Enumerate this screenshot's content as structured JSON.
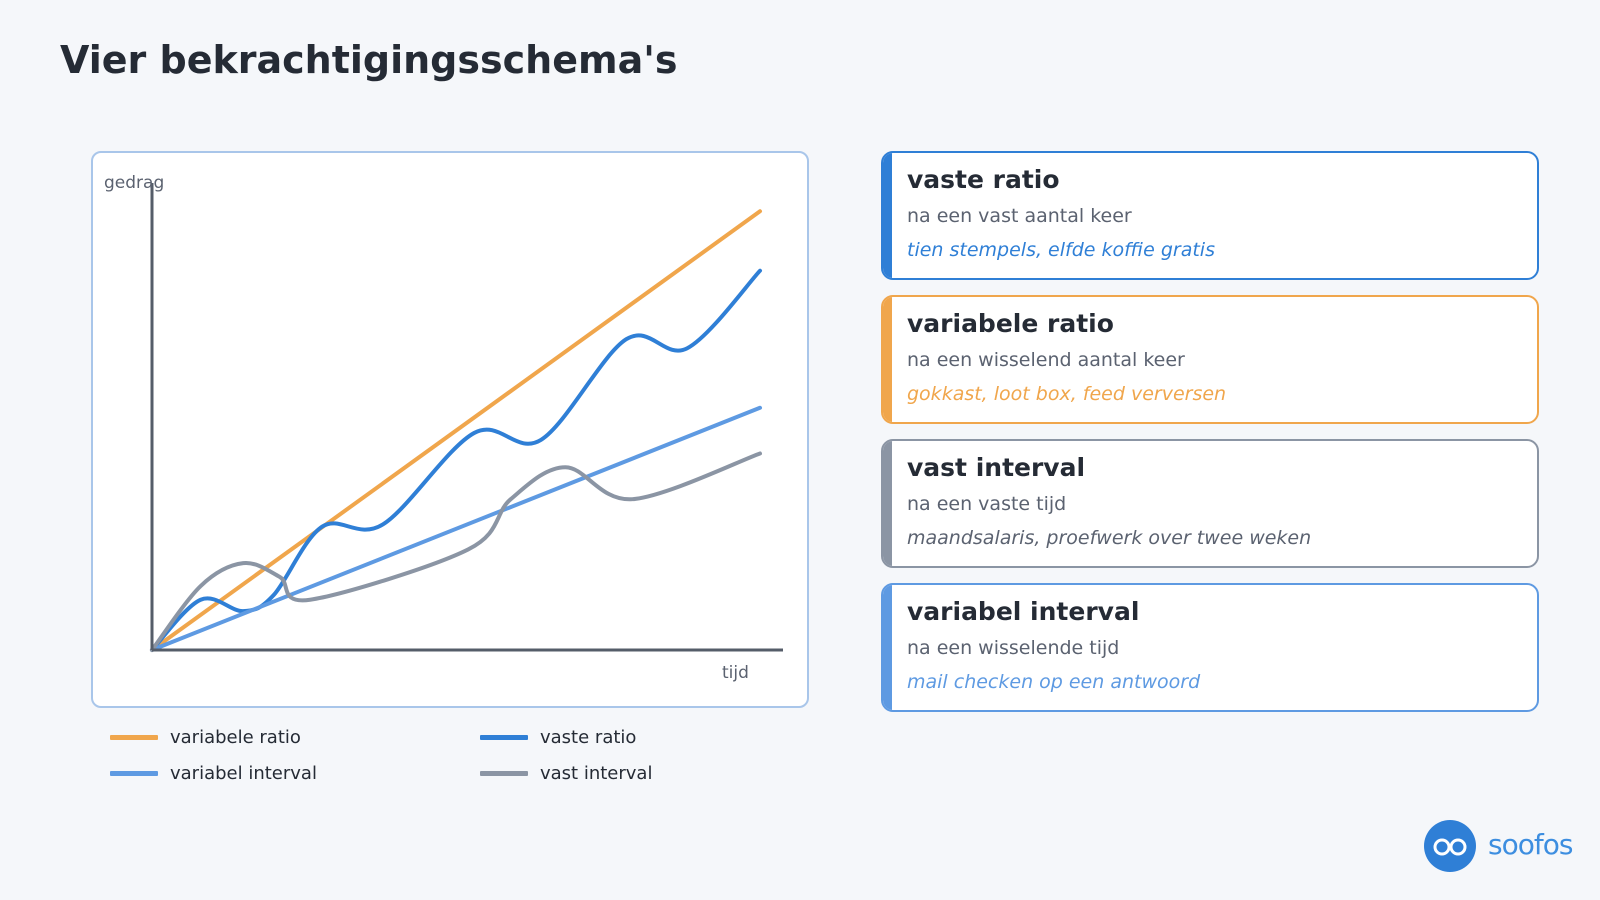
{
  "title": "Vier bekrachtigingsschema's",
  "chart_data": {
    "type": "line",
    "xlabel": "tijd",
    "ylabel": "gedrag",
    "xlim": [
      0,
      10
    ],
    "ylim": [
      0,
      10
    ],
    "grid": false,
    "legend_position": "bottom",
    "series": [
      {
        "name": "variabele ratio",
        "color": "#f0a64c",
        "x": [
          0,
          10
        ],
        "y": [
          0,
          9.6
        ]
      },
      {
        "name": "vaste ratio",
        "color": "#2f7fd6",
        "x": [
          0,
          0.8,
          1.5,
          2.0,
          2.8,
          3.8,
          5.3,
          6.4,
          7.8,
          8.8,
          10
        ],
        "y": [
          0,
          1.1,
          0.85,
          1.2,
          2.7,
          2.75,
          4.75,
          4.6,
          6.8,
          6.6,
          8.3
        ]
      },
      {
        "name": "variabel interval",
        "color": "#5e9ae2",
        "x": [
          0,
          10
        ],
        "y": [
          0,
          5.3
        ]
      },
      {
        "name": "vast interval",
        "color": "#8b95a4",
        "x": [
          0,
          0.8,
          1.5,
          2.1,
          2.6,
          5.2,
          5.9,
          6.8,
          7.9,
          10
        ],
        "y": [
          0,
          1.4,
          1.9,
          1.6,
          1.1,
          2.2,
          3.3,
          4.0,
          3.3,
          4.3
        ]
      }
    ]
  },
  "legend": [
    {
      "label": "variabele ratio",
      "color": "#f0a64c"
    },
    {
      "label": "vaste ratio",
      "color": "#2f7fd6"
    },
    {
      "label": "variabel interval",
      "color": "#5e9ae2"
    },
    {
      "label": "vast interval",
      "color": "#8b95a4"
    }
  ],
  "cards": [
    {
      "title": "vaste ratio",
      "desc": "na een vast aantal keer",
      "example": "tien stempels, elfde koffie gratis",
      "color": "#2f7fd6",
      "example_color": "#2f7fd6"
    },
    {
      "title": "variabele ratio",
      "desc": "na een wisselend aantal keer",
      "example": "gokkast, loot box, feed verversen",
      "color": "#f0a64c",
      "example_color": "#f0a64c"
    },
    {
      "title": "vast interval",
      "desc": "na een vaste tijd",
      "example": "maandsalaris, proefwerk over twee weken",
      "color": "#8b95a4",
      "example_color": "#5b6270"
    },
    {
      "title": "variabel interval",
      "desc": "na een wisselende tijd",
      "example": "mail checken op een antwoord",
      "color": "#5e9ae2",
      "example_color": "#5e9ae2"
    }
  ],
  "brand": {
    "name": "soofos",
    "icon": "glasses-icon"
  }
}
